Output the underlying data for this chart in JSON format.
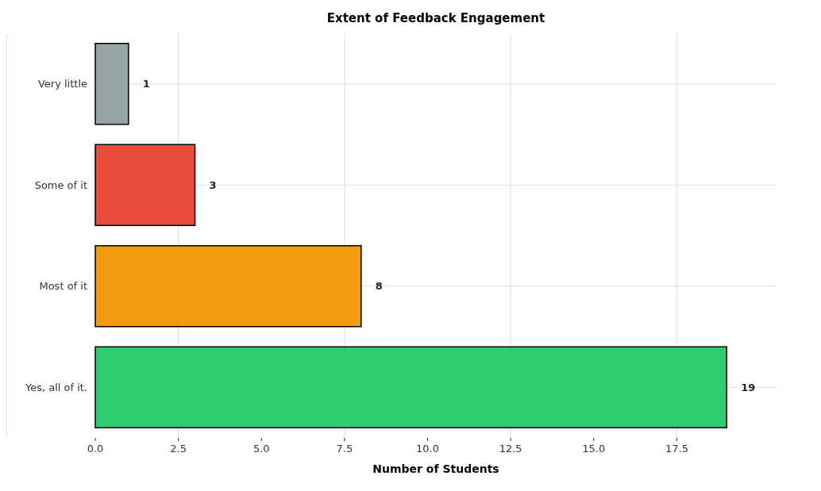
{
  "chart_data": {
    "type": "bar",
    "orientation": "horizontal",
    "title": "Extent of Feedback Engagement",
    "xlabel": "Number of Students",
    "categories": [
      "Very little",
      "Some of it",
      "Most of it",
      "Yes, all of it."
    ],
    "values": [
      1,
      3,
      8,
      19
    ],
    "colors": [
      "#95a5a6",
      "#e74c3c",
      "#f39c12",
      "#2ecc71"
    ],
    "xlim": [
      0,
      20.5
    ],
    "xticks": [
      {
        "value": 0,
        "label": "0.0"
      },
      2.5,
      {
        "value": 5,
        "label": "5.0"
      },
      7.5,
      {
        "value": 10,
        "label": "10.0"
      },
      12.5,
      {
        "value": 15,
        "label": "15.0"
      },
      17.5
    ],
    "grid": true,
    "data_labels": true
  }
}
